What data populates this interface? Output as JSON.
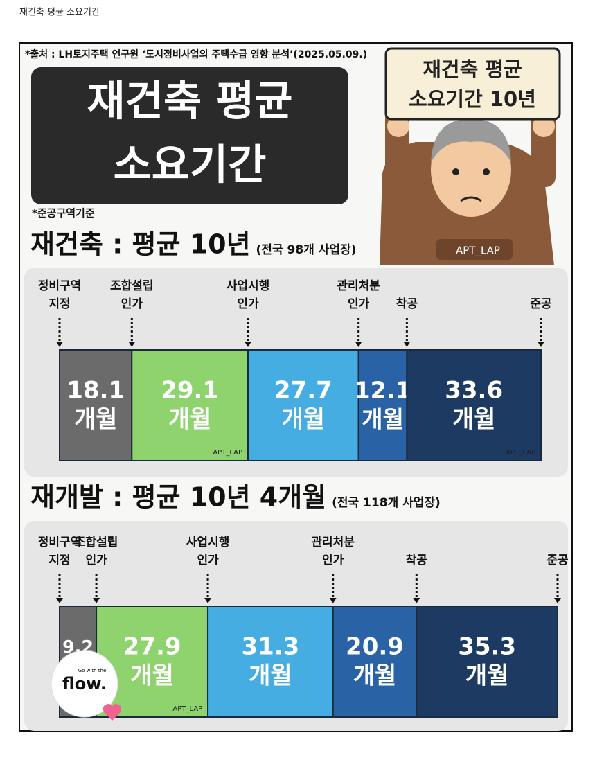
{
  "page_title": "재건축 평균 소요기간",
  "infographic": {
    "source": "*출처 : LH토지주택 연구원 ‘도시정비사업의 주택수급 영향 분석’(2025.05.09.)",
    "title_lines": [
      "재건축 평균",
      "소요기간"
    ],
    "note": "*준공구역기준",
    "sign_lines": [
      "재건축 평균",
      "소요기간 10년"
    ],
    "handle": "APT_LAP",
    "logo": {
      "small": "Go with the",
      "big": "flow."
    },
    "unit": "개월",
    "stages": [
      [
        "정비구역",
        "지정"
      ],
      [
        "조합설립",
        "인가"
      ],
      [
        "사업시행",
        "인가"
      ],
      [
        "관리처분",
        "인가"
      ],
      [
        "착공"
      ],
      [
        "준공"
      ]
    ],
    "segment_colors": [
      "#6b6b6b",
      "#8fd36f",
      "#46ade2",
      "#2a62a6",
      "#1c3a62"
    ],
    "sections": [
      {
        "heading": "재건축 : 평균 10년",
        "sub": "(전국 98개 사업장)",
        "durations": [
          18.1,
          29.1,
          27.7,
          12.1,
          33.6
        ]
      },
      {
        "heading": "재개발 : 평균 10년 4개월",
        "sub": "(전국 118개 사업장)",
        "durations": [
          9.2,
          27.9,
          31.3,
          20.9,
          35.3
        ]
      }
    ]
  }
}
